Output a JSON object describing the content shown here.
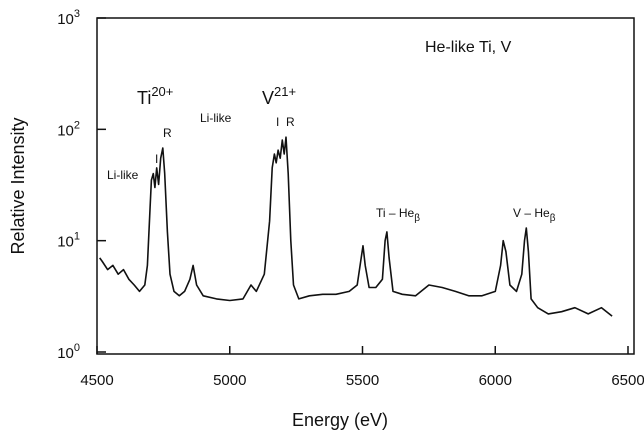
{
  "chart_data": {
    "type": "line",
    "xlabel": "Energy (eV)",
    "ylabel": "Relative Intensity",
    "xlim": [
      4500,
      6500
    ],
    "xticks": [
      4500,
      5000,
      5500,
      6000,
      6500
    ],
    "ylim": [
      1,
      1000
    ],
    "log_y": true,
    "yticks": [
      {
        "value": 1,
        "label": "10",
        "exponent": "0"
      },
      {
        "value": 10,
        "label": "10",
        "exponent": "1"
      },
      {
        "value": 100,
        "label": "10",
        "exponent": "2"
      },
      {
        "value": 1000,
        "label": "10",
        "exponent": "3"
      }
    ],
    "series": [
      {
        "color": "#111111",
        "x": [
          4510,
          4520,
          4540,
          4560,
          4580,
          4600,
          4620,
          4640,
          4660,
          4680,
          4690,
          4700,
          4705,
          4712,
          4718,
          4725,
          4732,
          4740,
          4748,
          4755,
          4765,
          4775,
          4790,
          4810,
          4830,
          4850,
          4862,
          4875,
          4900,
          4950,
          5000,
          5050,
          5080,
          5100,
          5130,
          5150,
          5160,
          5168,
          5175,
          5182,
          5190,
          5198,
          5205,
          5212,
          5220,
          5230,
          5240,
          5260,
          5300,
          5350,
          5400,
          5450,
          5480,
          5495,
          5502,
          5510,
          5525,
          5550,
          5575,
          5585,
          5592,
          5600,
          5615,
          5650,
          5700,
          5750,
          5800,
          5850,
          5900,
          5950,
          6000,
          6020,
          6030,
          6040,
          6055,
          6080,
          6100,
          6110,
          6117,
          6125,
          6135,
          6160,
          6200,
          6250,
          6300,
          6350,
          6400,
          6440
        ],
        "values": [
          7,
          6.5,
          5.5,
          6,
          5,
          5.5,
          4.5,
          4,
          3.5,
          4,
          6,
          20,
          35,
          40,
          30,
          45,
          32,
          55,
          68,
          40,
          12,
          5,
          3.5,
          3.2,
          3.5,
          4.5,
          6,
          4,
          3.2,
          3,
          2.9,
          3,
          4,
          3.5,
          5,
          15,
          45,
          60,
          50,
          65,
          55,
          80,
          60,
          85,
          40,
          10,
          4,
          3,
          3.2,
          3.3,
          3.3,
          3.5,
          4,
          7,
          9,
          6,
          3.8,
          3.8,
          4.5,
          10,
          12,
          7,
          3.5,
          3.3,
          3.2,
          4,
          3.8,
          3.5,
          3.2,
          3.2,
          3.5,
          6,
          10,
          8,
          4,
          3.5,
          5,
          10,
          13,
          8,
          3,
          2.5,
          2.2,
          2.3,
          2.5,
          2.2,
          2.5,
          2.1
        ]
      }
    ],
    "annotations": [
      {
        "text": "He-like Ti, V"
      },
      {
        "text": "Ti",
        "sup": "20+"
      },
      {
        "text": "V",
        "sup": "21+"
      },
      {
        "text": "Li-like"
      },
      {
        "text": "I"
      },
      {
        "text": "R"
      },
      {
        "text": "Li-like"
      },
      {
        "text": "I"
      },
      {
        "text": "R"
      },
      {
        "text": "Ti – He",
        "sub": "β"
      },
      {
        "text": "V – He",
        "sub": "β"
      }
    ]
  }
}
